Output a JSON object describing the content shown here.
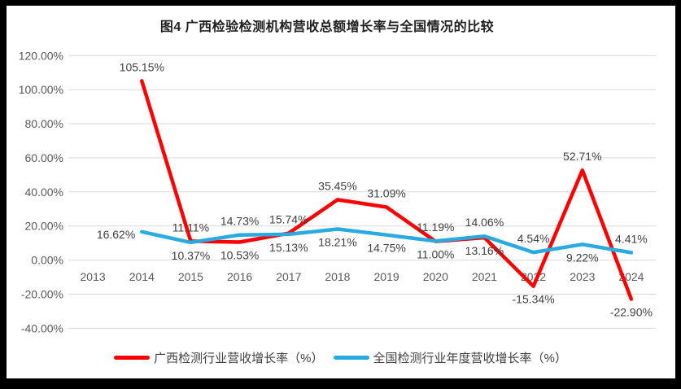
{
  "colors": {
    "guangxi_red": "#ff0000",
    "national_blue": "#29abe2",
    "gridline": "#d9d9d9",
    "axis_text": "#595959",
    "data_label": "#404040",
    "frame": "#000000",
    "background": "#ffffff"
  },
  "chart_data": {
    "type": "line",
    "title": "图4 广西检验检测机构营收总额增长率与全国情况的比较",
    "categories": [
      "2013",
      "2014",
      "2015",
      "2016",
      "2017",
      "2018",
      "2019",
      "2020",
      "2021",
      "2022",
      "2023",
      "2024"
    ],
    "series": [
      {
        "name": "广西检测行业营收增长率（%）",
        "color": "#ff0000",
        "values": [
          null,
          105.15,
          11.11,
          10.53,
          15.74,
          35.45,
          31.09,
          11.0,
          13.16,
          -15.34,
          52.71,
          -22.9
        ],
        "labels": [
          null,
          "105.15%",
          "11.11%",
          "10.53%",
          "15.74%",
          "35.45%",
          "31.09%",
          "11.00%",
          "13.16%",
          "-15.34%",
          "52.71%",
          "-22.90%"
        ],
        "label_side": [
          null,
          "above",
          "above",
          "below",
          "above",
          "above",
          "above",
          "below",
          "below",
          "below",
          "above",
          "below"
        ]
      },
      {
        "name": "全国检测行业年度营收增长率（%）",
        "color": "#29abe2",
        "values": [
          null,
          16.62,
          10.37,
          14.73,
          15.13,
          18.21,
          14.75,
          11.19,
          14.06,
          4.54,
          9.22,
          4.41
        ],
        "labels": [
          null,
          "16.62%",
          "10.37%",
          "14.73%",
          "15.13%",
          "18.21%",
          "14.75%",
          "11.19%",
          "14.06%",
          "4.54%",
          "9.22%",
          "4.41%"
        ],
        "label_side": [
          null,
          "left",
          "below",
          "above",
          "below",
          "below",
          "below",
          "above",
          "above",
          "above",
          "below",
          "above"
        ]
      }
    ],
    "y_axis": {
      "ticks": [
        {
          "v": 120,
          "label": "120.00%"
        },
        {
          "v": 100,
          "label": "100.00%"
        },
        {
          "v": 80,
          "label": "80.00%"
        },
        {
          "v": 60,
          "label": "60.00%"
        },
        {
          "v": 40,
          "label": "40.00%"
        },
        {
          "v": 20,
          "label": "20.00%"
        },
        {
          "v": 0,
          "label": "0.00%"
        },
        {
          "v": -20,
          "label": "-20.00%"
        },
        {
          "v": -40,
          "label": "-40.00%"
        }
      ],
      "ylim": [
        -40,
        120
      ]
    },
    "xlabel": "",
    "ylabel": "",
    "grid": true,
    "legend_position": "bottom"
  }
}
